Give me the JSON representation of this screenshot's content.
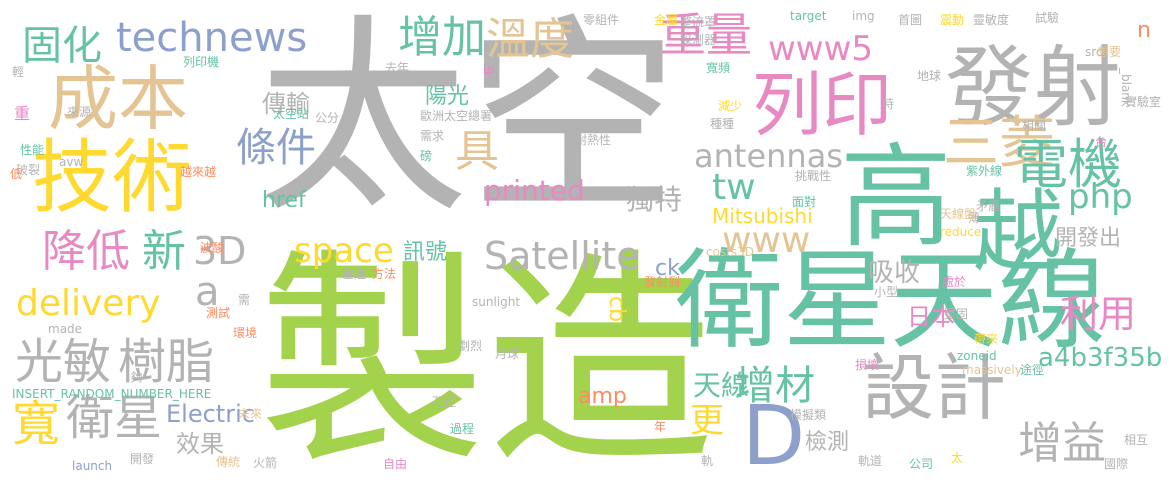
{
  "colors": {
    "gray": "#b3b3b3",
    "green": "#a3d34d",
    "teal": "#66c2a5",
    "yellow": "#ffd92f",
    "tan": "#e5c494",
    "pink": "#e78ac3",
    "blue": "#8da0cb",
    "orange": "#fc8d62"
  },
  "words": [
    "太空",
    "製造",
    "衛星",
    "天線",
    "高",
    "越",
    "發射",
    "技術",
    "成本",
    "列印",
    "設計",
    "三菱",
    "電機",
    "technews",
    "固化",
    "增加",
    "溫度",
    "重量",
    "www5",
    "條件",
    "具",
    "antennas",
    "php",
    "tw",
    "降低",
    "新",
    "3D",
    "Satellite",
    "www",
    "space",
    "delivery",
    "a",
    "光敏",
    "樹脂",
    "printed",
    "獨特",
    "Mitsubishi",
    "href",
    "訊號",
    "吸收",
    "開發出",
    "日本",
    "增材",
    "利用",
    "cb",
    "ck",
    "a4b3f35b",
    "amp",
    "D",
    "天線",
    "更",
    "寬",
    "衛星",
    "Electric",
    "效果",
    "檢測",
    "增益",
    "傳輸",
    "陽光",
    "n",
    "零組件",
    "金屬",
    "整流罩",
    "探測器",
    "target",
    "img",
    "首圖",
    "震動",
    "靈敏度",
    "試驗",
    "src",
    "想要",
    "輕",
    "列印機",
    "導致",
    "去年",
    "中",
    "寬頻",
    "地球",
    "_blank",
    "重",
    "來源",
    "太空站",
    "公分",
    "歐洲太空總署",
    "減少",
    "時",
    "實驗室",
    "性能",
    "avw",
    "耐熱性",
    "種種",
    "相關",
    "台",
    "破裂",
    "需求",
    "磅",
    "挑戰性",
    "紫外線",
    "低",
    "越來越",
    "面對",
    "矛盾",
    "薄",
    "天線盤",
    "波酸",
    "reduce",
    "costs3D",
    "處於",
    "發射到",
    "塞進",
    "方法",
    "sunlight",
    "小型",
    "測試",
    "需",
    "堅固",
    "made",
    "環境",
    "劇烈",
    "月球",
    "帶來",
    "zoneid",
    "INSERT_RANDOM_NUMBER_HERE",
    "夠",
    "massively",
    "損壞",
    "途徑",
    "未來",
    "孔徑",
    "模擬類",
    "相互",
    "過程",
    "年",
    "launch",
    "開發",
    "傳統",
    "火箭",
    "自由",
    "軌",
    "軌道",
    "公司",
    "太",
    "國際"
  ]
}
